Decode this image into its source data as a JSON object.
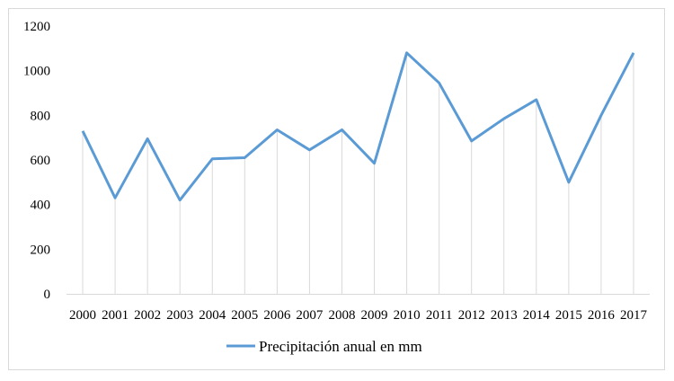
{
  "chart_data": {
    "type": "line",
    "title": "",
    "xlabel": "",
    "ylabel": "",
    "categories": [
      "2000",
      "2001",
      "2002",
      "2003",
      "2004",
      "2005",
      "2006",
      "2007",
      "2008",
      "2009",
      "2010",
      "2011",
      "2012",
      "2013",
      "2014",
      "2015",
      "2016",
      "2017"
    ],
    "series": [
      {
        "name": "Precipitación anual en mm",
        "color": "#5b9bd5",
        "values": [
          730,
          430,
          695,
          420,
          605,
          610,
          735,
          645,
          735,
          585,
          1080,
          945,
          685,
          785,
          870,
          500,
          800,
          1080
        ]
      }
    ],
    "ylim": [
      0,
      1200
    ],
    "yticks": [
      "0",
      "200",
      "400",
      "600",
      "800",
      "1000",
      "1200"
    ],
    "drop_lines": true,
    "grid": false,
    "legend_position": "bottom"
  }
}
